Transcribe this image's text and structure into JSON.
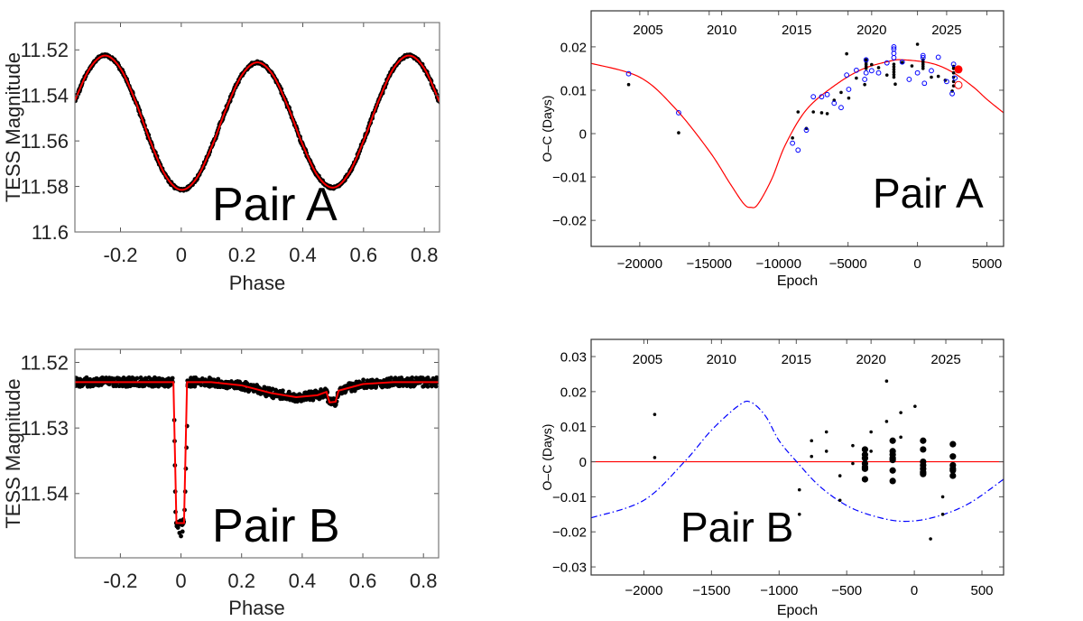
{
  "chart_data": [
    {
      "type": "scatter",
      "panel": "top-left",
      "annotation": "Pair A",
      "xlabel": "Phase",
      "ylabel": "TESS Magnitude",
      "xlim": [
        -0.35,
        0.85
      ],
      "ylim": [
        11.508,
        11.6
      ],
      "y_reversed": true,
      "xticks": [
        -0.2,
        0,
        0.2,
        0.4,
        0.6,
        0.8
      ],
      "xticklabels": [
        "-0.2",
        "0",
        "0.2",
        "0.4",
        "0.6",
        "0.8"
      ],
      "yticks": [
        11.52,
        11.54,
        11.56,
        11.58,
        11.6
      ],
      "yticklabels": [
        "11.52",
        "11.54",
        "11.56",
        "11.58",
        "11.6"
      ],
      "colors": {
        "observed": "#000000",
        "model": "#ff0000"
      },
      "model": {
        "x": [
          -0.35,
          -0.3,
          -0.25,
          -0.2,
          -0.15,
          -0.1,
          -0.05,
          0,
          0.05,
          0.1,
          0.15,
          0.2,
          0.25,
          0.3,
          0.35,
          0.4,
          0.45,
          0.5,
          0.55,
          0.6,
          0.65,
          0.7,
          0.75,
          0.8,
          0.85
        ],
        "y": [
          11.5422,
          11.5279,
          11.5225,
          11.5282,
          11.5428,
          11.5608,
          11.5756,
          11.5815,
          11.5765,
          11.5626,
          11.5452,
          11.531,
          11.5255,
          11.5307,
          11.5446,
          11.5618,
          11.5755,
          11.5805,
          11.5746,
          11.56,
          11.5422,
          11.5279,
          11.5225,
          11.5282,
          11.5428
        ]
      }
    },
    {
      "type": "scatter",
      "panel": "top-right",
      "annotation": "Pair A",
      "xlabel": "Epoch",
      "ylabel": "O–C (Days)",
      "xlim": [
        -23500,
        6200
      ],
      "ylim": [
        -0.026,
        0.0283
      ],
      "xticks": [
        -20000,
        -15000,
        -10000,
        -5000,
        0,
        5000
      ],
      "xticklabels": [
        "−20000",
        "−15000",
        "−10000",
        "−5000",
        "0",
        "5000"
      ],
      "yticks": [
        0.02,
        0.01,
        0,
        -0.01,
        -0.02
      ],
      "yticklabels": [
        "0.02",
        "0.01",
        "0",
        "−0.01",
        "−0.02"
      ],
      "top_axis": {
        "labels": [
          "2005",
          "2010",
          "2015",
          "2020",
          "2025"
        ],
        "epochs": [
          -19400,
          -14100,
          -8700,
          -3300,
          2100
        ]
      },
      "colors": {
        "primary": "#000000",
        "secondary": "#0000ff",
        "new": "#ff0000",
        "model": "#ff0000"
      },
      "model": {
        "x": [
          -23500,
          -20000,
          -17500,
          -15000,
          -13500,
          -12500,
          -12000,
          -11500,
          -10500,
          -9500,
          -8000,
          -6000,
          -4000,
          -2000,
          -1000,
          1000,
          2500,
          4000,
          5000,
          6200
        ],
        "y": [
          0.0162,
          0.013,
          0.006,
          -0.004,
          -0.0115,
          -0.0162,
          -0.017,
          -0.0163,
          -0.0105,
          -0.0025,
          0.0055,
          0.011,
          0.0148,
          0.0167,
          0.017,
          0.0162,
          0.0142,
          0.0108,
          0.0079,
          0.0048
        ]
      },
      "series": [
        {
          "marker": "dot",
          "x": [
            -20800,
            -17200,
            -9000,
            -8600,
            -8000,
            -7500,
            -6900,
            -6500,
            -6000,
            -5500,
            -5100,
            -4950,
            -4400,
            -3800,
            -3300,
            -2800,
            -2200,
            -1600,
            -1100,
            -400,
            0,
            1000,
            1500,
            2000,
            2500,
            -3700,
            -3700,
            -3700,
            -3700,
            -3700,
            -1700,
            -1700,
            -1700,
            -1700,
            -1700,
            -1700,
            400,
            400,
            400,
            400,
            400,
            2600,
            2600,
            2600,
            2600,
            2600,
            2600
          ],
          "y": [
            0.0113,
            0.0002,
            -0.001,
            0.005,
            0.0012,
            0.005,
            0.0048,
            0.0046,
            0.0077,
            0.0095,
            0.0184,
            0.0082,
            0.0128,
            0.0113,
            0.0159,
            0.0152,
            0.0135,
            0.0114,
            0.0164,
            0.0156,
            0.0206,
            0.013,
            0.0132,
            0.0123,
            0.0098,
            0.015,
            0.0155,
            0.016,
            0.0165,
            0.017,
            0.013,
            0.0136,
            0.0142,
            0.0148,
            0.0154,
            0.016,
            0.015,
            0.0155,
            0.016,
            0.0165,
            0.017,
            0.011,
            0.012,
            0.013,
            0.014,
            0.015,
            0.0155
          ]
        },
        {
          "marker": "open-circle",
          "x": [
            -20800,
            -17200,
            -9000,
            -8600,
            -8000,
            -7500,
            -6900,
            -6500,
            -6000,
            -5500,
            -5100,
            -4950,
            -4400,
            -3800,
            -3700,
            -3700,
            -3300,
            -2800,
            -2200,
            -1700,
            -1700,
            -1700,
            -1700,
            -1100,
            -600,
            0,
            400,
            400,
            500,
            1000,
            1500,
            2100,
            2500,
            2600,
            2700
          ],
          "y": [
            0.0138,
            0.0048,
            -0.0022,
            -0.0038,
            0.0008,
            0.0085,
            0.0085,
            0.009,
            0.007,
            0.006,
            0.0135,
            0.0102,
            0.0146,
            0.0125,
            0.014,
            0.017,
            0.0145,
            0.014,
            0.0163,
            0.0175,
            0.0185,
            0.0195,
            0.02,
            0.0165,
            0.0125,
            0.014,
            0.018,
            0.0175,
            0.0116,
            0.0145,
            0.0176,
            0.012,
            0.0092,
            0.016,
            0.0128
          ]
        },
        {
          "marker": "filled-red",
          "x": [
            2950
          ],
          "y": [
            0.0148
          ]
        },
        {
          "marker": "open-red",
          "x": [
            2950
          ],
          "y": [
            0.0112
          ]
        }
      ]
    },
    {
      "type": "scatter",
      "panel": "bottom-left",
      "annotation": "Pair B",
      "xlabel": "Phase",
      "ylabel": "TESS Magnitude",
      "xlim": [
        -0.35,
        0.85
      ],
      "ylim": [
        11.518,
        11.5498
      ],
      "y_reversed": true,
      "xticks": [
        -0.2,
        0,
        0.2,
        0.4,
        0.6,
        0.8
      ],
      "xticklabels": [
        "-0.2",
        "0",
        "0.2",
        "0.4",
        "0.6",
        "0.8"
      ],
      "yticks": [
        11.52,
        11.53,
        11.54
      ],
      "yticklabels": [
        "11.52",
        "11.53",
        "11.54"
      ],
      "colors": {
        "observed": "#000000",
        "model": "#ff0000"
      },
      "model": {
        "x": [
          -0.35,
          -0.025,
          -0.015,
          0.01,
          0.02,
          0.1,
          0.2,
          0.3,
          0.38,
          0.45,
          0.48,
          0.49,
          0.51,
          0.52,
          0.6,
          0.7,
          0.85
        ],
        "y": [
          11.523,
          11.523,
          11.5445,
          11.5445,
          11.523,
          11.523,
          11.5235,
          11.5247,
          11.5253,
          11.525,
          11.5245,
          11.5261,
          11.526,
          11.5243,
          11.5233,
          11.523,
          11.523
        ]
      },
      "eclipse_points": {
        "x": [
          -0.022,
          -0.021,
          -0.02,
          -0.019,
          -0.018,
          -0.015,
          -0.01,
          -0.005,
          0,
          0.005,
          0.008,
          0.012,
          0.014,
          0.016,
          0.018,
          0.02
        ],
        "y": [
          11.5288,
          11.532,
          11.5357,
          11.5397,
          11.5428,
          11.5445,
          11.5452,
          11.546,
          11.5465,
          11.5458,
          11.5445,
          11.5425,
          11.5397,
          11.5362,
          11.533,
          11.5297
        ]
      }
    },
    {
      "type": "scatter",
      "panel": "bottom-right",
      "annotation": "Pair B",
      "xlabel": "Epoch",
      "ylabel": "O–C (Days)",
      "xlim": [
        -2390,
        660
      ],
      "ylim": [
        -0.0323,
        0.0349
      ],
      "xticks": [
        -2000,
        -1500,
        -1000,
        -500,
        0,
        500
      ],
      "xticklabels": [
        "−2000",
        "−1500",
        "−1000",
        "−500",
        "0",
        "500"
      ],
      "yticks": [
        0.03,
        0.02,
        0.01,
        0,
        -0.01,
        -0.02,
        -0.03
      ],
      "yticklabels": [
        "0.03",
        "0.02",
        "0.01",
        "0",
        "−0.01",
        "−0.02",
        "−0.03"
      ],
      "top_axis": {
        "labels": [
          "2005",
          "2010",
          "2015",
          "2020",
          "2025"
        ],
        "epochs": [
          -1973,
          -1427,
          -873,
          -320,
          233
        ]
      },
      "colors": {
        "points": "#000000",
        "zero_line": "#ff0000",
        "ltte_curve": "#0000ff"
      },
      "zero_line": 0,
      "model": {
        "x": [
          -2390,
          -2000,
          -1700,
          -1500,
          -1300,
          -1210,
          -1100,
          -1000,
          -870,
          -700,
          -500,
          -300,
          -80,
          150,
          400,
          660
        ],
        "y": [
          -0.016,
          -0.011,
          0,
          0.009,
          0.016,
          0.017,
          0.013,
          0.006,
          0,
          -0.007,
          -0.0125,
          -0.0155,
          -0.017,
          -0.0158,
          -0.012,
          -0.005
        ]
      },
      "series": [
        {
          "marker": "small-dot",
          "x": [
            -1920,
            -1920,
            -850,
            -850,
            -760,
            -760,
            -650,
            -650,
            -550,
            -550,
            -455,
            -455,
            -320,
            -320,
            -205,
            -205,
            -100,
            -100,
            5,
            120,
            210,
            210
          ],
          "y": [
            0.0135,
            0.0012,
            -0.008,
            -0.015,
            0.006,
            0.0015,
            0.0085,
            0.003,
            -0.004,
            -0.011,
            0.0046,
            -0.0005,
            0.0085,
            0.003,
            0.023,
            0.0115,
            0.014,
            0.007,
            0.0158,
            -0.022,
            -0.01,
            -0.015
          ]
        },
        {
          "marker": "large-dot",
          "x": [
            -365,
            -365,
            -365,
            -365,
            -365,
            -365,
            -365,
            -160,
            -160,
            -160,
            -160,
            -160,
            -160,
            -160,
            65,
            65,
            65,
            65,
            65,
            65,
            65,
            285,
            285,
            285,
            285,
            285,
            285
          ],
          "y": [
            0.0035,
            0.002,
            0.001,
            -0.0005,
            -0.0015,
            -0.002,
            -0.005,
            0.006,
            0.003,
            0.002,
            0.001,
            0.0005,
            -0.0025,
            -0.0055,
            0.006,
            0.0035,
            0,
            -0.001,
            -0.002,
            -0.003,
            -0.0035,
            0.005,
            0.0015,
            -0.001,
            -0.002,
            -0.0025,
            -0.004
          ]
        }
      ]
    }
  ]
}
